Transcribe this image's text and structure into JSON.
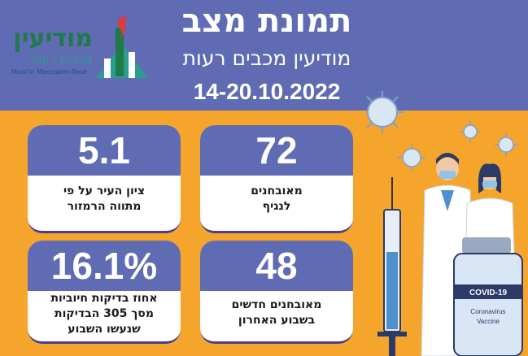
{
  "header": {
    "title": "תמונת מצב",
    "subtitle": "מודיעין מכבים רעות",
    "dates": "14-20.10.2022"
  },
  "logo": {
    "name_he": "מודיעין",
    "sub_he": "מכבים רעות",
    "name_en": "Modi'in Maccabim-Reut"
  },
  "cards": [
    {
      "value": "72",
      "label_line1": "מאובחנים",
      "label_line2": "לנגיף"
    },
    {
      "value": "5.1",
      "label_line1": "ציון העיר על פי",
      "label_line2": "מתווה הרמזור"
    },
    {
      "value": "48",
      "label_line1": "מאובחנים חדשים",
      "label_line2": "בשבוע האחרון"
    },
    {
      "value": "16.1%",
      "label_line1": "אחוז בדיקות חיוביות",
      "label_line2": "מסך 305 הבדיקות",
      "label_line3": "שנעשו השבוע"
    }
  ],
  "illustration": {
    "vial_label": "COVID-19",
    "vial_text1": "Coronavirus",
    "vial_text2": "Vaccine"
  },
  "colors": {
    "header_bg": "#5f6bb2",
    "body_bg": "#f5a42c",
    "card_bg": "#ffffff"
  }
}
